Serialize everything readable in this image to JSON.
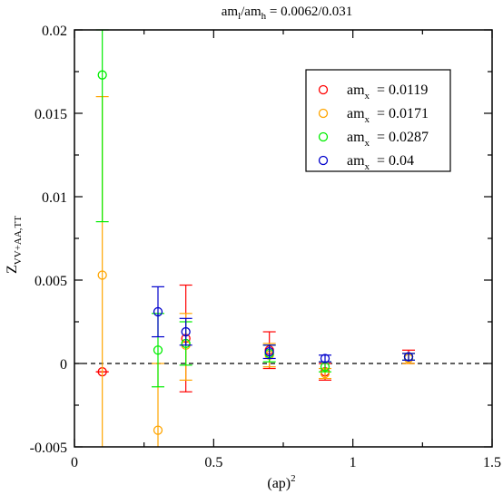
{
  "chart_data": {
    "type": "scatter",
    "title": {
      "pre": "am",
      "sub1": "l",
      "mid": "/am",
      "sub2": "h",
      "post": " = 0.0062/0.031"
    },
    "xlabel": {
      "main": "(ap)",
      "sup": "2"
    },
    "ylabel": {
      "main": "Z",
      "sub": "VV+AA,TT"
    },
    "xlim": [
      0,
      1.5
    ],
    "ylim": [
      -0.005,
      0.02
    ],
    "xticks": [
      0,
      0.5,
      1,
      1.5
    ],
    "xtick_labels": [
      "0",
      "0.5",
      "1",
      "1.5"
    ],
    "yticks": [
      -0.005,
      0,
      0.005,
      0.01,
      0.015,
      0.02
    ],
    "ytick_labels": [
      "-0.005",
      "0",
      "0.005",
      "0.01",
      "0.015",
      "0.02"
    ],
    "reference_line": {
      "y": 0,
      "style": "dashed"
    },
    "legend_position": "top-right",
    "series": [
      {
        "name": {
          "pre": "am",
          "sub": "x",
          "value": "= 0.0119"
        },
        "color": "#ff0000",
        "points": [
          {
            "x": 0.1,
            "y": -0.0005,
            "err_lo": -0.0005,
            "err_hi": -0.0005
          },
          {
            "x": 0.4,
            "y": 0.0015,
            "err_lo": -0.0017,
            "err_hi": 0.0047
          },
          {
            "x": 0.7,
            "y": 0.0008,
            "err_lo": -0.0003,
            "err_hi": 0.0019
          },
          {
            "x": 0.9,
            "y": -0.0005,
            "err_lo": -0.001,
            "err_hi": 0.0
          },
          {
            "x": 1.2,
            "y": 0.0004,
            "err_lo": 0.0,
            "err_hi": 0.0008
          }
        ]
      },
      {
        "name": {
          "pre": "am",
          "sub": "x",
          "value": "= 0.0171"
        },
        "color": "#ffa500",
        "points": [
          {
            "x": 0.1,
            "y": 0.0053,
            "err_lo": -0.006,
            "err_hi": 0.016
          },
          {
            "x": 0.3,
            "y": -0.004,
            "err_lo": -0.008,
            "err_hi": 0.0
          },
          {
            "x": 0.4,
            "y": 0.0011,
            "err_lo": -0.001,
            "err_hi": 0.003
          },
          {
            "x": 0.7,
            "y": 0.0005,
            "err_lo": -0.0002,
            "err_hi": 0.0012
          },
          {
            "x": 0.9,
            "y": -0.0006,
            "err_lo": -0.0009,
            "err_hi": -0.0003
          },
          {
            "x": 1.2,
            "y": 0.0003,
            "err_lo": 0.0,
            "err_hi": 0.0006
          }
        ]
      },
      {
        "name": {
          "pre": "am",
          "sub": "x",
          "value": "= 0.0287"
        },
        "color": "#00ee00",
        "points": [
          {
            "x": 0.1,
            "y": 0.0173,
            "err_lo": 0.0085,
            "err_hi": 0.02
          },
          {
            "x": 0.3,
            "y": 0.0008,
            "err_lo": -0.0014,
            "err_hi": 0.003
          },
          {
            "x": 0.4,
            "y": 0.0012,
            "err_lo": -0.0001,
            "err_hi": 0.0025
          },
          {
            "x": 0.7,
            "y": 0.0006,
            "err_lo": 0.0001,
            "err_hi": 0.0011
          },
          {
            "x": 0.9,
            "y": -0.0002,
            "err_lo": -0.0005,
            "err_hi": 0.0001
          },
          {
            "x": 1.2,
            "y": 0.0004,
            "err_lo": 0.0002,
            "err_hi": 0.0006
          }
        ]
      },
      {
        "name": {
          "pre": "am",
          "sub": "x",
          "value": "= 0.04"
        },
        "color": "#0000cc",
        "points": [
          {
            "x": 0.3,
            "y": 0.0031,
            "err_lo": 0.0016,
            "err_hi": 0.0046
          },
          {
            "x": 0.4,
            "y": 0.0019,
            "err_lo": 0.0011,
            "err_hi": 0.0027
          },
          {
            "x": 0.7,
            "y": 0.0007,
            "err_lo": 0.0003,
            "err_hi": 0.0011
          },
          {
            "x": 0.9,
            "y": 0.0003,
            "err_lo": 0.0001,
            "err_hi": 0.0005
          },
          {
            "x": 1.2,
            "y": 0.0004,
            "err_lo": 0.0002,
            "err_hi": 0.0006
          }
        ]
      }
    ]
  }
}
